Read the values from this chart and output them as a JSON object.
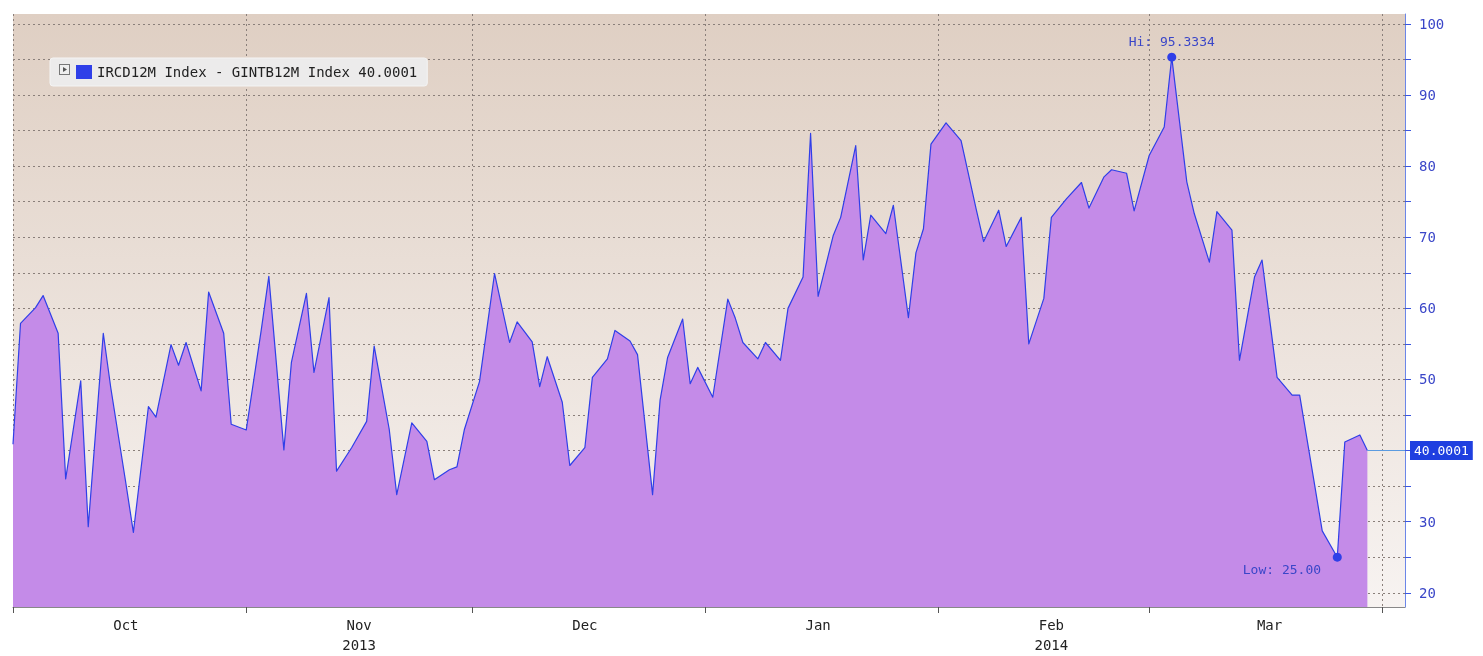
{
  "chart_data": {
    "type": "area",
    "x": [
      "2013-10-01",
      "2013-10-02",
      "2013-10-04",
      "2013-10-05",
      "2013-10-07",
      "2013-10-08",
      "2013-10-10",
      "2013-10-11",
      "2013-10-13",
      "2013-10-14",
      "2013-10-16",
      "2013-10-17",
      "2013-10-19",
      "2013-10-20",
      "2013-10-22",
      "2013-10-23",
      "2013-10-24",
      "2013-10-26",
      "2013-10-27",
      "2013-10-29",
      "2013-10-30",
      "2013-11-01",
      "2013-11-03",
      "2013-11-04",
      "2013-11-06",
      "2013-11-07",
      "2013-11-09",
      "2013-11-10",
      "2013-11-12",
      "2013-11-13",
      "2013-11-15",
      "2013-11-17",
      "2013-11-18",
      "2013-11-20",
      "2013-11-21",
      "2013-11-23",
      "2013-11-25",
      "2013-11-26",
      "2013-11-28",
      "2013-11-29",
      "2013-11-30",
      "2013-12-02",
      "2013-12-04",
      "2013-12-06",
      "2013-12-07",
      "2013-12-09",
      "2013-12-10",
      "2013-12-11",
      "2013-12-13",
      "2013-12-14",
      "2013-12-16",
      "2013-12-17",
      "2013-12-19",
      "2013-12-20",
      "2013-12-22",
      "2013-12-23",
      "2013-12-25",
      "2013-12-26",
      "2013-12-27",
      "2013-12-29",
      "2013-12-30",
      "2013-12-31",
      "2014-01-02",
      "2014-01-04",
      "2014-01-05",
      "2014-01-06",
      "2014-01-08",
      "2014-01-09",
      "2014-01-11",
      "2014-01-12",
      "2014-01-14",
      "2014-01-15",
      "2014-01-16",
      "2014-01-18",
      "2014-01-19",
      "2014-01-21",
      "2014-01-22",
      "2014-01-23",
      "2014-01-25",
      "2014-01-26",
      "2014-01-28",
      "2014-01-29",
      "2014-01-30",
      "2014-01-31",
      "2014-02-02",
      "2014-02-04",
      "2014-02-06",
      "2014-02-07",
      "2014-02-09",
      "2014-02-10",
      "2014-02-12",
      "2014-02-13",
      "2014-02-15",
      "2014-02-16",
      "2014-02-18",
      "2014-02-20",
      "2014-02-21",
      "2014-02-23",
      "2014-02-24",
      "2014-02-26",
      "2014-02-27",
      "2014-03-01",
      "2014-03-03",
      "2014-03-04",
      "2014-03-06",
      "2014-03-07",
      "2014-03-09",
      "2014-03-10",
      "2014-03-12",
      "2014-03-13",
      "2014-03-15",
      "2014-03-16",
      "2014-03-18",
      "2014-03-20",
      "2014-03-21",
      "2014-03-23",
      "2014-03-24",
      "2014-03-26",
      "2014-03-27",
      "2014-03-29",
      "2014-03-30"
    ],
    "series": [
      {
        "name": "IRCD12M Index - GINTB12M Index 40.0001",
        "color": "#2f3fe8",
        "values": [
          40.9,
          57.9,
          60.1,
          61.8,
          56.5,
          36.0,
          49.8,
          29.3,
          56.5,
          48.8,
          35.4,
          28.5,
          46.2,
          44.7,
          54.9,
          52.0,
          55.2,
          48.4,
          62.3,
          56.5,
          43.7,
          42.9,
          57.0,
          64.5,
          40.1,
          52.4,
          62.1,
          51.0,
          61.5,
          37.1,
          40.4,
          44.1,
          54.7,
          43.0,
          33.8,
          43.9,
          41.3,
          35.9,
          37.3,
          37.7,
          43.0,
          49.7,
          64.9,
          55.2,
          58.1,
          55.3,
          49.0,
          53.2,
          46.8,
          37.9,
          40.4,
          50.3,
          52.9,
          56.9,
          55.4,
          53.5,
          33.8,
          47.1,
          53.1,
          58.5,
          49.4,
          51.7,
          47.5,
          61.3,
          58.6,
          55.2,
          52.9,
          55.2,
          52.7,
          60.0,
          64.4,
          84.6,
          61.7,
          70.2,
          72.8,
          82.9,
          66.8,
          73.1,
          70.5,
          74.5,
          58.7,
          67.8,
          71.2,
          83.1,
          86.1,
          83.6,
          74.0,
          69.4,
          73.8,
          68.7,
          72.8,
          55.0,
          61.4,
          72.8,
          75.4,
          77.7,
          74.1,
          78.5,
          79.5,
          79.0,
          73.7,
          81.5,
          85.5,
          95.3334,
          77.8,
          73.3,
          66.5,
          73.6,
          71.0,
          52.7,
          64.4,
          66.8,
          50.3,
          47.8,
          47.8,
          35.1,
          28.7,
          25.0,
          41.2,
          42.2,
          40.0001
        ]
      }
    ],
    "xlim": [
      "2013-10-01",
      "2014-04-04"
    ],
    "xticks": [
      {
        "value": "2013-10-01",
        "label": null
      },
      {
        "value": "2013-10-16",
        "label": "Oct"
      },
      {
        "value": "2013-11-01",
        "label": null
      },
      {
        "value": "2013-11-16",
        "label": "Nov\n2013"
      },
      {
        "value": "2013-12-01",
        "label": null
      },
      {
        "value": "2013-12-16",
        "label": "Dec"
      },
      {
        "value": "2014-01-01",
        "label": null
      },
      {
        "value": "2014-01-16",
        "label": "Jan"
      },
      {
        "value": "2014-02-01",
        "label": null
      },
      {
        "value": "2014-02-16",
        "label": "Feb\n2014"
      },
      {
        "value": "2014-03-01",
        "label": null
      },
      {
        "value": "2014-03-17",
        "label": "Mar"
      },
      {
        "value": "2014-04-01",
        "label": null
      }
    ],
    "ylim": [
      18,
      101.4
    ],
    "yticks": [
      20,
      {
        "value": 25,
        "label": null
      },
      30,
      {
        "value": 35,
        "label": null
      },
      {
        "value": 40,
        "label": null
      },
      {
        "value": 45,
        "label": null
      },
      50,
      {
        "value": 55,
        "label": null
      },
      60,
      {
        "value": 65,
        "label": null
      },
      70,
      {
        "value": 75,
        "label": null
      },
      80,
      {
        "value": 85,
        "label": null
      },
      90,
      {
        "value": 95,
        "label": null
      },
      100
    ],
    "annotations": [
      {
        "text": "Hi: 95.3334",
        "x": "2014-03-04",
        "y": 95.3334
      },
      {
        "text": "Low: 25.00",
        "x": "2014-03-26",
        "y": 25.0
      }
    ],
    "ref_lines": [
      {
        "axis": "y",
        "value": 40.0001,
        "label": "40.0001"
      }
    ],
    "grid": true,
    "legend": "top left",
    "marker": "none",
    "line_style": "solid"
  }
}
